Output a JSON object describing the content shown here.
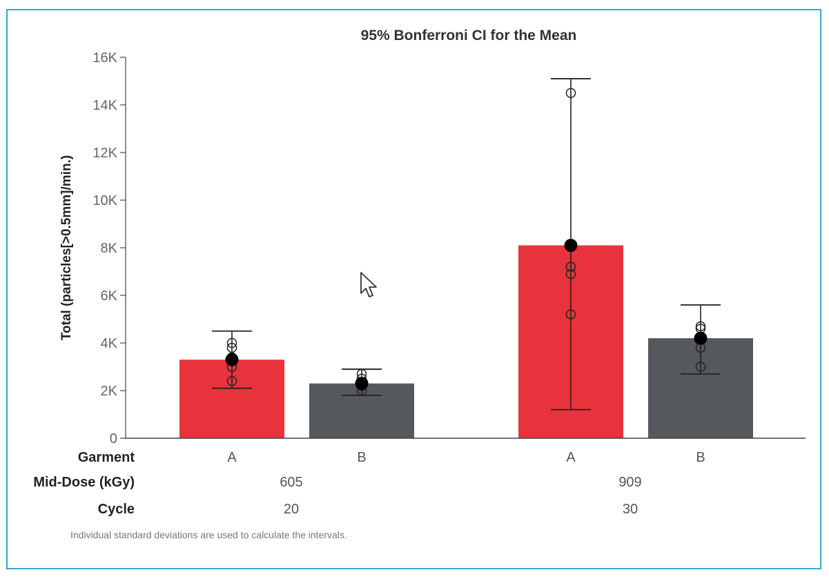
{
  "chart_data": {
    "type": "bar",
    "title": "95% Bonferroni CI for the Mean",
    "ylabel": "Total (particles[>0.5mm]/min.)",
    "ylim": [
      0,
      16000
    ],
    "yticks": [
      0,
      2000,
      4000,
      6000,
      8000,
      10000,
      12000,
      14000,
      16000
    ],
    "ytick_labels": [
      "0",
      "2K",
      "4K",
      "6K",
      "8K",
      "10K",
      "12K",
      "14K",
      "16K"
    ],
    "grid": false,
    "row_labels": [
      "Garment",
      "Mid-Dose (kGy)",
      "Cycle"
    ],
    "groups": [
      {
        "mid_dose": "605",
        "cycle": "20",
        "bars": [
          {
            "garment": "A",
            "mean": 3300,
            "ci_low": 2100,
            "ci_high": 4500,
            "points": [
              4000,
              3800,
              3400,
              3000,
              2400
            ]
          },
          {
            "garment": "B",
            "mean": 2300,
            "ci_low": 1800,
            "ci_high": 2900,
            "points": [
              2700,
              2500,
              2300,
              2200,
              2000
            ]
          }
        ]
      },
      {
        "mid_dose": "909",
        "cycle": "30",
        "bars": [
          {
            "garment": "A",
            "mean": 8100,
            "ci_low": 1200,
            "ci_high": 15100,
            "points": [
              14500,
              7200,
              6900,
              5200
            ]
          },
          {
            "garment": "B",
            "mean": 4200,
            "ci_low": 2700,
            "ci_high": 5600,
            "points": [
              4700,
              4600,
              3800,
              3000
            ]
          }
        ]
      }
    ],
    "colors": {
      "A": "#e8333c",
      "B": "#55585d",
      "mean_marker": "#000000",
      "axis": "#444444",
      "text": "#555555"
    },
    "footnote": "Individual standard deviations are used to calculate the intervals."
  }
}
